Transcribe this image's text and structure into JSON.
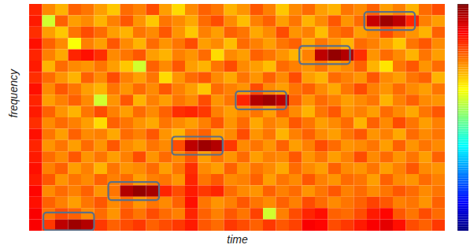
{
  "chart_data": {
    "type": "heatmap",
    "x_label": "time",
    "y_label": "frequency",
    "tick_labels": false,
    "color_range": [
      0,
      100
    ],
    "colorbar_ticks": [],
    "cells": [
      [
        84,
        74,
        70,
        78,
        76,
        72,
        68,
        77,
        75,
        80,
        72,
        66,
        74,
        78,
        76,
        70,
        73,
        79,
        75,
        68,
        74,
        77,
        72,
        70,
        76,
        74,
        78,
        72,
        75,
        70,
        77,
        80
      ],
      [
        85,
        58,
        78,
        72,
        74,
        70,
        75,
        79,
        73,
        68,
        76,
        74,
        71,
        77,
        80,
        74,
        69,
        75,
        78,
        72,
        76,
        70,
        74,
        79,
        73,
        77,
        93,
        97,
        94,
        84,
        75,
        72
      ],
      [
        83,
        72,
        68,
        76,
        80,
        77,
        72,
        70,
        76,
        74,
        79,
        73,
        68,
        75,
        72,
        78,
        76,
        71,
        74,
        80,
        73,
        75,
        69,
        76,
        78,
        72,
        74,
        80,
        76,
        73,
        70,
        78
      ],
      [
        86,
        78,
        74,
        62,
        75,
        72,
        79,
        74,
        70,
        77,
        73,
        76,
        80,
        72,
        74,
        69,
        77,
        75,
        72,
        76,
        78,
        71,
        76,
        73,
        70,
        77,
        75,
        72,
        68,
        76,
        79,
        74
      ],
      [
        84,
        75,
        71,
        84,
        86,
        83,
        74,
        76,
        79,
        72,
        70,
        75,
        73,
        77,
        66,
        74,
        72,
        78,
        76,
        73,
        70,
        75,
        94,
        98,
        95,
        83,
        73,
        77,
        74,
        70,
        76,
        72
      ],
      [
        85,
        70,
        77,
        74,
        73,
        76,
        72,
        68,
        58,
        78,
        74,
        79,
        72,
        70,
        76,
        80,
        74,
        72,
        69,
        77,
        75,
        73,
        76,
        72,
        74,
        78,
        70,
        65,
        76,
        79,
        73,
        77
      ],
      [
        83,
        77,
        73,
        70,
        78,
        74,
        80,
        75,
        72,
        76,
        66,
        73,
        77,
        79,
        74,
        71,
        76,
        73,
        78,
        74,
        80,
        72,
        70,
        77,
        75,
        73,
        79,
        74,
        72,
        76,
        78,
        70
      ],
      [
        86,
        74,
        79,
        76,
        72,
        70,
        76,
        73,
        77,
        74,
        79,
        75,
        72,
        68,
        77,
        75,
        73,
        80,
        74,
        72,
        76,
        78,
        74,
        71,
        76,
        80,
        75,
        73,
        77,
        74,
        72,
        76
      ],
      [
        84,
        72,
        75,
        78,
        74,
        58,
        73,
        79,
        70,
        75,
        72,
        76,
        74,
        80,
        73,
        76,
        84,
        95,
        97,
        94,
        78,
        73,
        77,
        75,
        72,
        74,
        76,
        70,
        75,
        78,
        74,
        73
      ],
      [
        85,
        78,
        73,
        70,
        76,
        80,
        75,
        72,
        77,
        74,
        78,
        83,
        84,
        82,
        75,
        72,
        74,
        76,
        72,
        78,
        74,
        70,
        76,
        79,
        73,
        75,
        72,
        77,
        74,
        71,
        76,
        79
      ],
      [
        83,
        74,
        77,
        75,
        72,
        66,
        78,
        76,
        73,
        71,
        76,
        74,
        72,
        75,
        79,
        73,
        77,
        71,
        75,
        73,
        79,
        76,
        72,
        74,
        77,
        70,
        78,
        74,
        80,
        76,
        72,
        75
      ],
      [
        86,
        76,
        72,
        78,
        74,
        75,
        71,
        77,
        75,
        79,
        73,
        70,
        76,
        78,
        72,
        74,
        80,
        73,
        76,
        70,
        75,
        78,
        74,
        72,
        76,
        79,
        73,
        75,
        71,
        77,
        74,
        76
      ],
      [
        84,
        73,
        76,
        72,
        77,
        73,
        79,
        74,
        72,
        76,
        74,
        80,
        94,
        97,
        95,
        82,
        74,
        76,
        73,
        78,
        72,
        75,
        80,
        77,
        73,
        74,
        76,
        72,
        78,
        73,
        76,
        74
      ],
      [
        85,
        77,
        74,
        79,
        73,
        76,
        72,
        75,
        80,
        73,
        77,
        74,
        79,
        72,
        76,
        73,
        77,
        72,
        75,
        74,
        79,
        73,
        76,
        72,
        75,
        80,
        74,
        77,
        73,
        76,
        72,
        78
      ],
      [
        86,
        75,
        78,
        72,
        75,
        70,
        76,
        73,
        74,
        77,
        72,
        76,
        83,
        74,
        72,
        78,
        73,
        76,
        74,
        71,
        77,
        74,
        72,
        78,
        74,
        73,
        76,
        72,
        75,
        79,
        74,
        73
      ],
      [
        85,
        79,
        73,
        76,
        74,
        78,
        75,
        77,
        72,
        75,
        76,
        73,
        84,
        76,
        79,
        74,
        75,
        78,
        72,
        76,
        74,
        79,
        75,
        73,
        77,
        76,
        72,
        78,
        74,
        73,
        77,
        75
      ],
      [
        87,
        74,
        77,
        75,
        78,
        73,
        76,
        95,
        98,
        96,
        84,
        80,
        85,
        82,
        84,
        77,
        74,
        73,
        78,
        75,
        77,
        73,
        76,
        79,
        75,
        77,
        74,
        76,
        79,
        77,
        74,
        76
      ],
      [
        86,
        78,
        75,
        72,
        76,
        79,
        74,
        77,
        73,
        76,
        74,
        78,
        86,
        76,
        73,
        75,
        79,
        76,
        74,
        78,
        75,
        80,
        77,
        74,
        76,
        78,
        81,
        79,
        75,
        76,
        73,
        78
      ],
      [
        88,
        76,
        80,
        78,
        74,
        77,
        73,
        79,
        76,
        80,
        77,
        75,
        84,
        78,
        75,
        79,
        76,
        81,
        58,
        75,
        80,
        84,
        86,
        78,
        77,
        80,
        85,
        87,
        79,
        76,
        80,
        77
      ],
      [
        88,
        82,
        94,
        97,
        95,
        82,
        78,
        80,
        82,
        78,
        80,
        82,
        85,
        79,
        77,
        82,
        80,
        78,
        82,
        79,
        81,
        88,
        87,
        80,
        82,
        85,
        88,
        90,
        86,
        80,
        78,
        82
      ]
    ],
    "boxes": [
      {
        "x": [
          1.1,
          5.0
        ],
        "y": [
          0.05,
          1.6
        ]
      },
      {
        "x": [
          6.1,
          10.0
        ],
        "y": [
          2.7,
          4.3
        ]
      },
      {
        "x": [
          11.0,
          14.9
        ],
        "y": [
          6.7,
          8.3
        ]
      },
      {
        "x": [
          15.9,
          19.8
        ],
        "y": [
          10.7,
          12.3
        ]
      },
      {
        "x": [
          20.8,
          24.7
        ],
        "y": [
          14.7,
          16.3
        ]
      },
      {
        "x": [
          25.8,
          29.7
        ],
        "y": [
          17.7,
          19.3
        ]
      }
    ]
  }
}
